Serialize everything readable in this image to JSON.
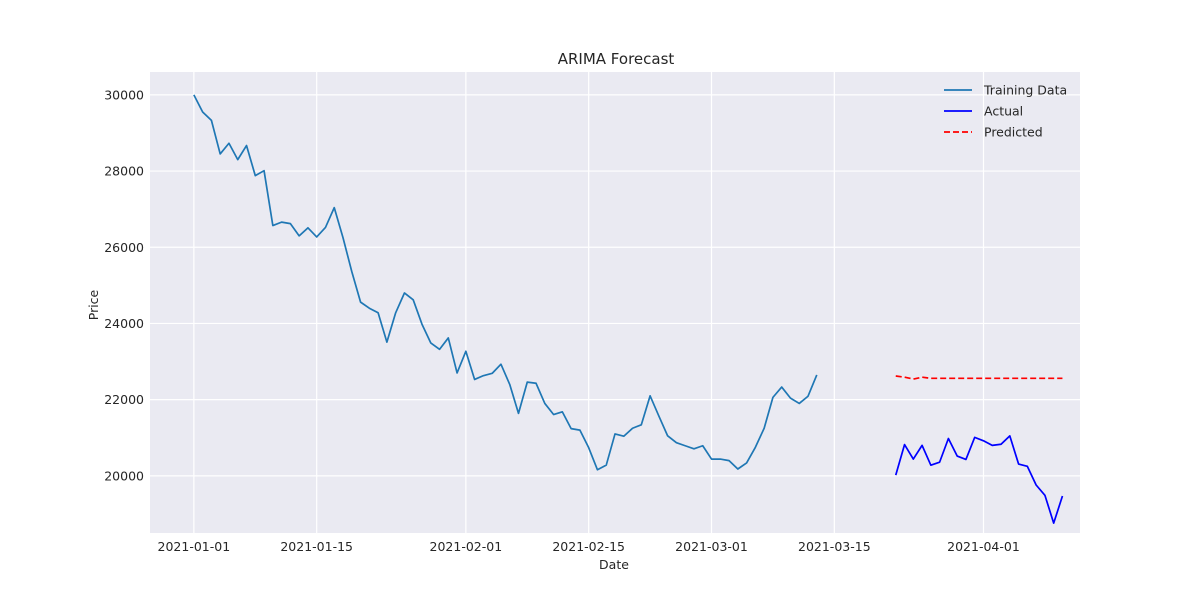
{
  "chart_data": {
    "type": "line",
    "title": "ARIMA Forecast",
    "xlabel": "Date",
    "ylabel": "Price",
    "x_ticks": [
      "2021-01-01",
      "2021-01-15",
      "2021-02-01",
      "2021-02-15",
      "2021-03-01",
      "2021-03-15",
      "2021-04-01"
    ],
    "y_ticks": [
      20000,
      22000,
      24000,
      26000,
      28000,
      30000
    ],
    "xlim": [
      "2020-12-27",
      "2021-04-12"
    ],
    "ylim": [
      18500,
      30600
    ],
    "grid": true,
    "legend_position": "top-right",
    "series": [
      {
        "name": "Training Data",
        "color": "#1f77b4",
        "dash": "solid",
        "points": [
          [
            "2021-01-01",
            30000
          ],
          [
            "2021-01-02",
            29550
          ],
          [
            "2021-01-03",
            29330
          ],
          [
            "2021-01-04",
            28450
          ],
          [
            "2021-01-05",
            28730
          ],
          [
            "2021-01-06",
            28300
          ],
          [
            "2021-01-07",
            28670
          ],
          [
            "2021-01-08",
            27880
          ],
          [
            "2021-01-09",
            28010
          ],
          [
            "2021-01-10",
            26570
          ],
          [
            "2021-01-11",
            26660
          ],
          [
            "2021-01-12",
            26620
          ],
          [
            "2021-01-13",
            26300
          ],
          [
            "2021-01-14",
            26510
          ],
          [
            "2021-01-15",
            26270
          ],
          [
            "2021-01-16",
            26520
          ],
          [
            "2021-01-17",
            27040
          ],
          [
            "2021-01-18",
            26250
          ],
          [
            "2021-01-19",
            25360
          ],
          [
            "2021-01-20",
            24560
          ],
          [
            "2021-01-21",
            24400
          ],
          [
            "2021-01-22",
            24280
          ],
          [
            "2021-01-23",
            23510
          ],
          [
            "2021-01-24",
            24280
          ],
          [
            "2021-01-25",
            24800
          ],
          [
            "2021-01-26",
            24620
          ],
          [
            "2021-01-27",
            23980
          ],
          [
            "2021-01-28",
            23490
          ],
          [
            "2021-01-29",
            23320
          ],
          [
            "2021-01-30",
            23620
          ],
          [
            "2021-01-31",
            22700
          ],
          [
            "2021-02-01",
            23270
          ],
          [
            "2021-02-02",
            22530
          ],
          [
            "2021-02-03",
            22630
          ],
          [
            "2021-02-04",
            22690
          ],
          [
            "2021-02-05",
            22930
          ],
          [
            "2021-02-06",
            22400
          ],
          [
            "2021-02-07",
            21640
          ],
          [
            "2021-02-08",
            22460
          ],
          [
            "2021-02-09",
            22430
          ],
          [
            "2021-02-10",
            21900
          ],
          [
            "2021-02-11",
            21610
          ],
          [
            "2021-02-12",
            21680
          ],
          [
            "2021-02-13",
            21240
          ],
          [
            "2021-02-14",
            21200
          ],
          [
            "2021-02-15",
            20740
          ],
          [
            "2021-02-16",
            20160
          ],
          [
            "2021-02-17",
            20280
          ],
          [
            "2021-02-18",
            21100
          ],
          [
            "2021-02-19",
            21040
          ],
          [
            "2021-02-20",
            21250
          ],
          [
            "2021-02-21",
            21340
          ],
          [
            "2021-02-22",
            22100
          ],
          [
            "2021-02-23",
            21570
          ],
          [
            "2021-02-24",
            21050
          ],
          [
            "2021-02-25",
            20870
          ],
          [
            "2021-02-26",
            20790
          ],
          [
            "2021-02-27",
            20710
          ],
          [
            "2021-02-28",
            20790
          ],
          [
            "2021-03-01",
            20440
          ],
          [
            "2021-03-02",
            20440
          ],
          [
            "2021-03-03",
            20400
          ],
          [
            "2021-03-04",
            20180
          ],
          [
            "2021-03-05",
            20340
          ],
          [
            "2021-03-06",
            20750
          ],
          [
            "2021-03-07",
            21250
          ],
          [
            "2021-03-08",
            22060
          ],
          [
            "2021-03-09",
            22330
          ],
          [
            "2021-03-10",
            22040
          ],
          [
            "2021-03-11",
            21900
          ],
          [
            "2021-03-12",
            22090
          ],
          [
            "2021-03-13",
            22650
          ]
        ]
      },
      {
        "name": "Actual",
        "color": "#0000ff",
        "dash": "solid",
        "points": [
          [
            "2021-03-22",
            20020
          ],
          [
            "2021-03-23",
            20820
          ],
          [
            "2021-03-24",
            20440
          ],
          [
            "2021-03-25",
            20800
          ],
          [
            "2021-03-26",
            20280
          ],
          [
            "2021-03-27",
            20360
          ],
          [
            "2021-03-28",
            20980
          ],
          [
            "2021-03-29",
            20520
          ],
          [
            "2021-03-30",
            20430
          ],
          [
            "2021-03-31",
            21010
          ],
          [
            "2021-04-01",
            20920
          ],
          [
            "2021-04-02",
            20800
          ],
          [
            "2021-04-03",
            20830
          ],
          [
            "2021-04-04",
            21050
          ],
          [
            "2021-04-05",
            20310
          ],
          [
            "2021-04-06",
            20250
          ],
          [
            "2021-04-07",
            19760
          ],
          [
            "2021-04-08",
            19490
          ],
          [
            "2021-04-09",
            18760
          ],
          [
            "2021-04-10",
            19470
          ]
        ]
      },
      {
        "name": "Predicted",
        "color": "#ff0000",
        "dash": "dashed",
        "points": [
          [
            "2021-03-22",
            22620
          ],
          [
            "2021-03-23",
            22590
          ],
          [
            "2021-03-24",
            22540
          ],
          [
            "2021-03-25",
            22590
          ],
          [
            "2021-03-26",
            22560
          ],
          [
            "2021-03-27",
            22560
          ],
          [
            "2021-03-28",
            22560
          ],
          [
            "2021-03-29",
            22560
          ],
          [
            "2021-03-30",
            22560
          ],
          [
            "2021-03-31",
            22560
          ],
          [
            "2021-04-01",
            22560
          ],
          [
            "2021-04-02",
            22560
          ],
          [
            "2021-04-03",
            22560
          ],
          [
            "2021-04-04",
            22560
          ],
          [
            "2021-04-05",
            22560
          ],
          [
            "2021-04-06",
            22560
          ],
          [
            "2021-04-07",
            22560
          ],
          [
            "2021-04-08",
            22560
          ],
          [
            "2021-04-09",
            22560
          ],
          [
            "2021-04-10",
            22560
          ]
        ]
      }
    ]
  }
}
